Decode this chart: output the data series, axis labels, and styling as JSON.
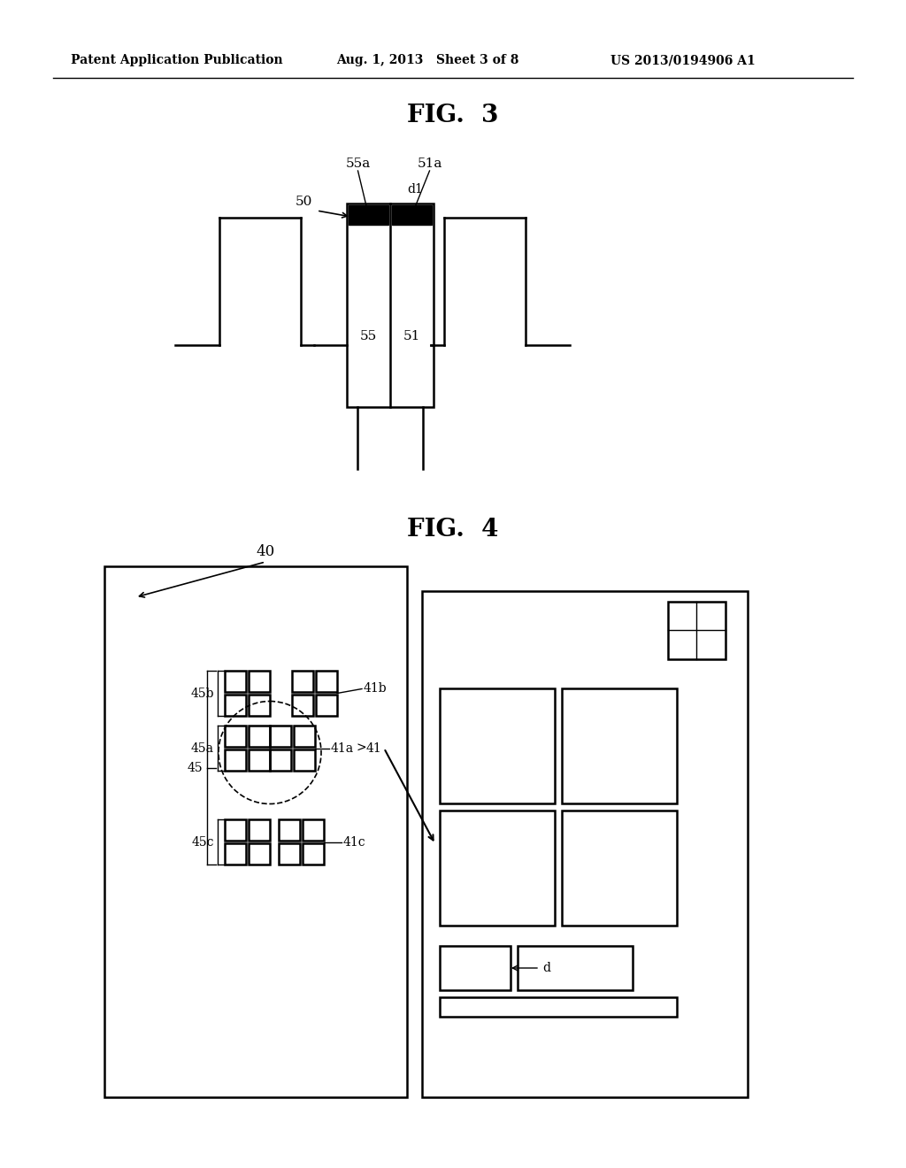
{
  "header_left": "Patent Application Publication",
  "header_mid": "Aug. 1, 2013   Sheet 3 of 8",
  "header_right": "US 2013/0194906 A1",
  "fig3_title": "FIG.  3",
  "fig4_title": "FIG.  4",
  "bg_color": "#ffffff",
  "line_color": "#000000",
  "fig3": {
    "label_50": "50",
    "label_55a": "55a",
    "label_51a": "51a",
    "label_d1": "d1",
    "label_55": "55",
    "label_51": "51"
  },
  "fig4": {
    "label_40": "40",
    "label_41": "41",
    "label_41a": "41a",
    "label_41b": "41b",
    "label_41c": "41c",
    "label_45": "45",
    "label_45a": "45a",
    "label_45b": "45b",
    "label_45c": "45c",
    "label_d": "d"
  }
}
